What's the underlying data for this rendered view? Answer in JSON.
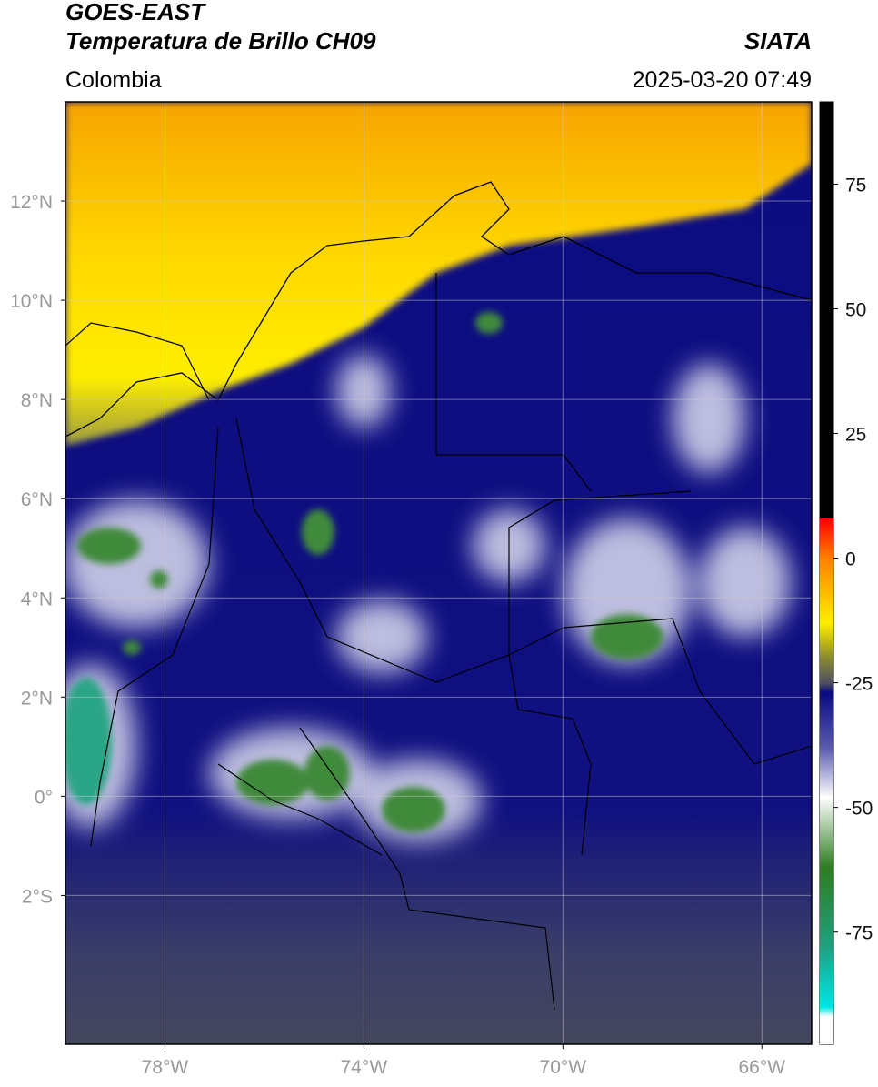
{
  "header": {
    "title": "GOES-EAST",
    "subtitle": "Temperatura de Brillo CH09",
    "source": "SIATA",
    "region": "Colombia",
    "datetime": "2025-03-20 07:49"
  },
  "map": {
    "xlim": [
      -80,
      -65
    ],
    "ylim": [
      -5,
      14
    ],
    "xticks": [
      {
        "value": -78,
        "label": "78°W"
      },
      {
        "value": -74,
        "label": "74°W"
      },
      {
        "value": -70,
        "label": "70°W"
      },
      {
        "value": -66,
        "label": "66°W"
      }
    ],
    "yticks": [
      {
        "value": -2,
        "label": "2°S"
      },
      {
        "value": 0,
        "label": "0°"
      },
      {
        "value": 2,
        "label": "2°N"
      },
      {
        "value": 4,
        "label": "4°N"
      },
      {
        "value": 6,
        "label": "6°N"
      },
      {
        "value": 8,
        "label": "8°N"
      },
      {
        "value": 10,
        "label": "10°N"
      },
      {
        "value": 12,
        "label": "12°N"
      }
    ],
    "grid": true
  },
  "colorbar": {
    "lim": [
      -97.5,
      91.5
    ],
    "ticks": [
      75,
      50,
      25,
      0,
      -25,
      -50,
      -75
    ],
    "stops": [
      {
        "value": 91.5,
        "color": "#000000"
      },
      {
        "value": 8,
        "color": "#000000"
      },
      {
        "value": 7.9,
        "color": "#ff0000"
      },
      {
        "value": 0,
        "color": "#ff8000"
      },
      {
        "value": -13,
        "color": "#ffee00"
      },
      {
        "value": -20,
        "color": "#8a8a30"
      },
      {
        "value": -25,
        "color": "#505060"
      },
      {
        "value": -27,
        "color": "#0a0a80"
      },
      {
        "value": -38,
        "color": "#5a5ab0"
      },
      {
        "value": -48,
        "color": "#ffffff"
      },
      {
        "value": -62,
        "color": "#2e7d20"
      },
      {
        "value": -78,
        "color": "#20a080"
      },
      {
        "value": -90,
        "color": "#00e5e5"
      },
      {
        "value": -92,
        "color": "#ffffff"
      },
      {
        "value": -97.5,
        "color": "#ffffff"
      }
    ]
  }
}
